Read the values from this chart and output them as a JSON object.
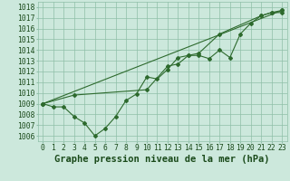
{
  "title": "Graphe pression niveau de la mer (hPa)",
  "xlim": [
    -0.5,
    23.5
  ],
  "ylim": [
    1005.5,
    1018.5
  ],
  "yticks": [
    1006,
    1007,
    1008,
    1009,
    1010,
    1011,
    1012,
    1013,
    1014,
    1015,
    1016,
    1017,
    1018
  ],
  "xticks": [
    0,
    1,
    2,
    3,
    4,
    5,
    6,
    7,
    8,
    9,
    10,
    11,
    12,
    13,
    14,
    15,
    16,
    17,
    18,
    19,
    20,
    21,
    22,
    23
  ],
  "x_labels": [
    "0",
    "1",
    "2",
    "3",
    "4",
    "5",
    "6",
    "7",
    "8",
    "9",
    "10",
    "11",
    "12",
    "13",
    "14",
    "15",
    "16",
    "17",
    "18",
    "19",
    "20",
    "21",
    "22",
    "23"
  ],
  "line1_x": [
    0,
    1,
    2,
    3,
    4,
    5,
    6,
    7,
    8,
    9,
    10,
    11,
    12,
    13,
    14,
    15,
    16,
    17,
    18,
    19,
    20,
    21,
    22,
    23
  ],
  "line1_y": [
    1009.0,
    1008.7,
    1008.7,
    1007.8,
    1007.2,
    1006.0,
    1006.7,
    1007.8,
    1009.3,
    1009.9,
    1011.5,
    1011.3,
    1012.2,
    1013.3,
    1013.5,
    1013.5,
    1013.2,
    1014.0,
    1013.3,
    1015.5,
    1016.5,
    1017.2,
    1017.5,
    1017.5
  ],
  "line2_x": [
    0,
    3,
    10,
    12,
    13,
    14,
    15,
    17,
    21,
    22,
    23
  ],
  "line2_y": [
    1009.0,
    1009.8,
    1010.3,
    1012.5,
    1012.7,
    1013.5,
    1013.7,
    1015.5,
    1017.2,
    1017.5,
    1017.7
  ],
  "line3_x": [
    0,
    23
  ],
  "line3_y": [
    1009.0,
    1017.7
  ],
  "line_color": "#2d6a2d",
  "bg_color": "#cce8dc",
  "grid_color": "#8fbfa8",
  "label_color": "#1a4a1a",
  "title_color": "#1a4a1a",
  "title_fontsize": 7.5,
  "tick_fontsize": 5.8
}
